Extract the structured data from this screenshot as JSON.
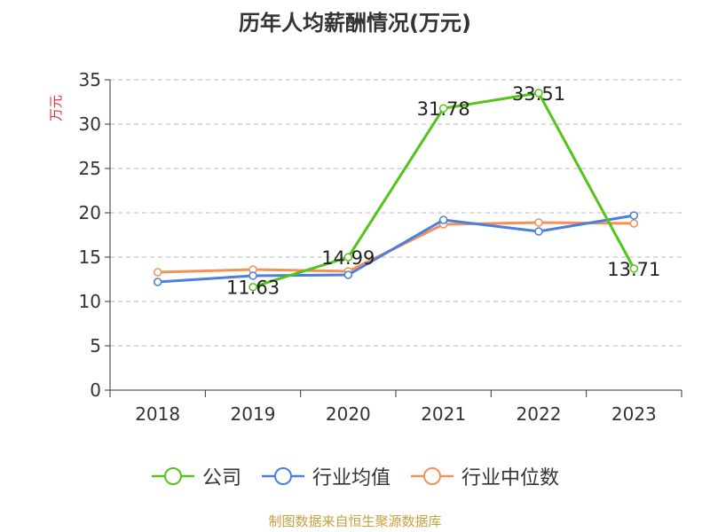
{
  "chart_data": {
    "type": "line",
    "title": "历年人均薪酬情况(万元)",
    "xlabel": "",
    "ylabel": "万元",
    "ylim": [
      0,
      35
    ],
    "yticks": [
      0,
      5,
      10,
      15,
      20,
      25,
      30,
      35
    ],
    "grid": "horizontal-dashed",
    "legend_position": "bottom",
    "categories": [
      "2018",
      "2019",
      "2020",
      "2021",
      "2022",
      "2023"
    ],
    "series": [
      {
        "name": "公司",
        "color": "#52c41a",
        "values": [
          null,
          11.63,
          14.99,
          31.78,
          33.51,
          13.71
        ],
        "labels": [
          null,
          "11.63",
          "14.99",
          "31.78",
          "33.51",
          "13.71"
        ]
      },
      {
        "name": "行业均值",
        "color": "#4a7fe0",
        "values": [
          12.2,
          12.9,
          13.0,
          19.2,
          17.9,
          19.7
        ]
      },
      {
        "name": "行业中位数",
        "color": "#f5905a",
        "values": [
          13.3,
          13.6,
          13.4,
          18.7,
          18.9,
          18.8
        ]
      }
    ]
  },
  "source_note": "制图数据来自恒生聚源数据库"
}
